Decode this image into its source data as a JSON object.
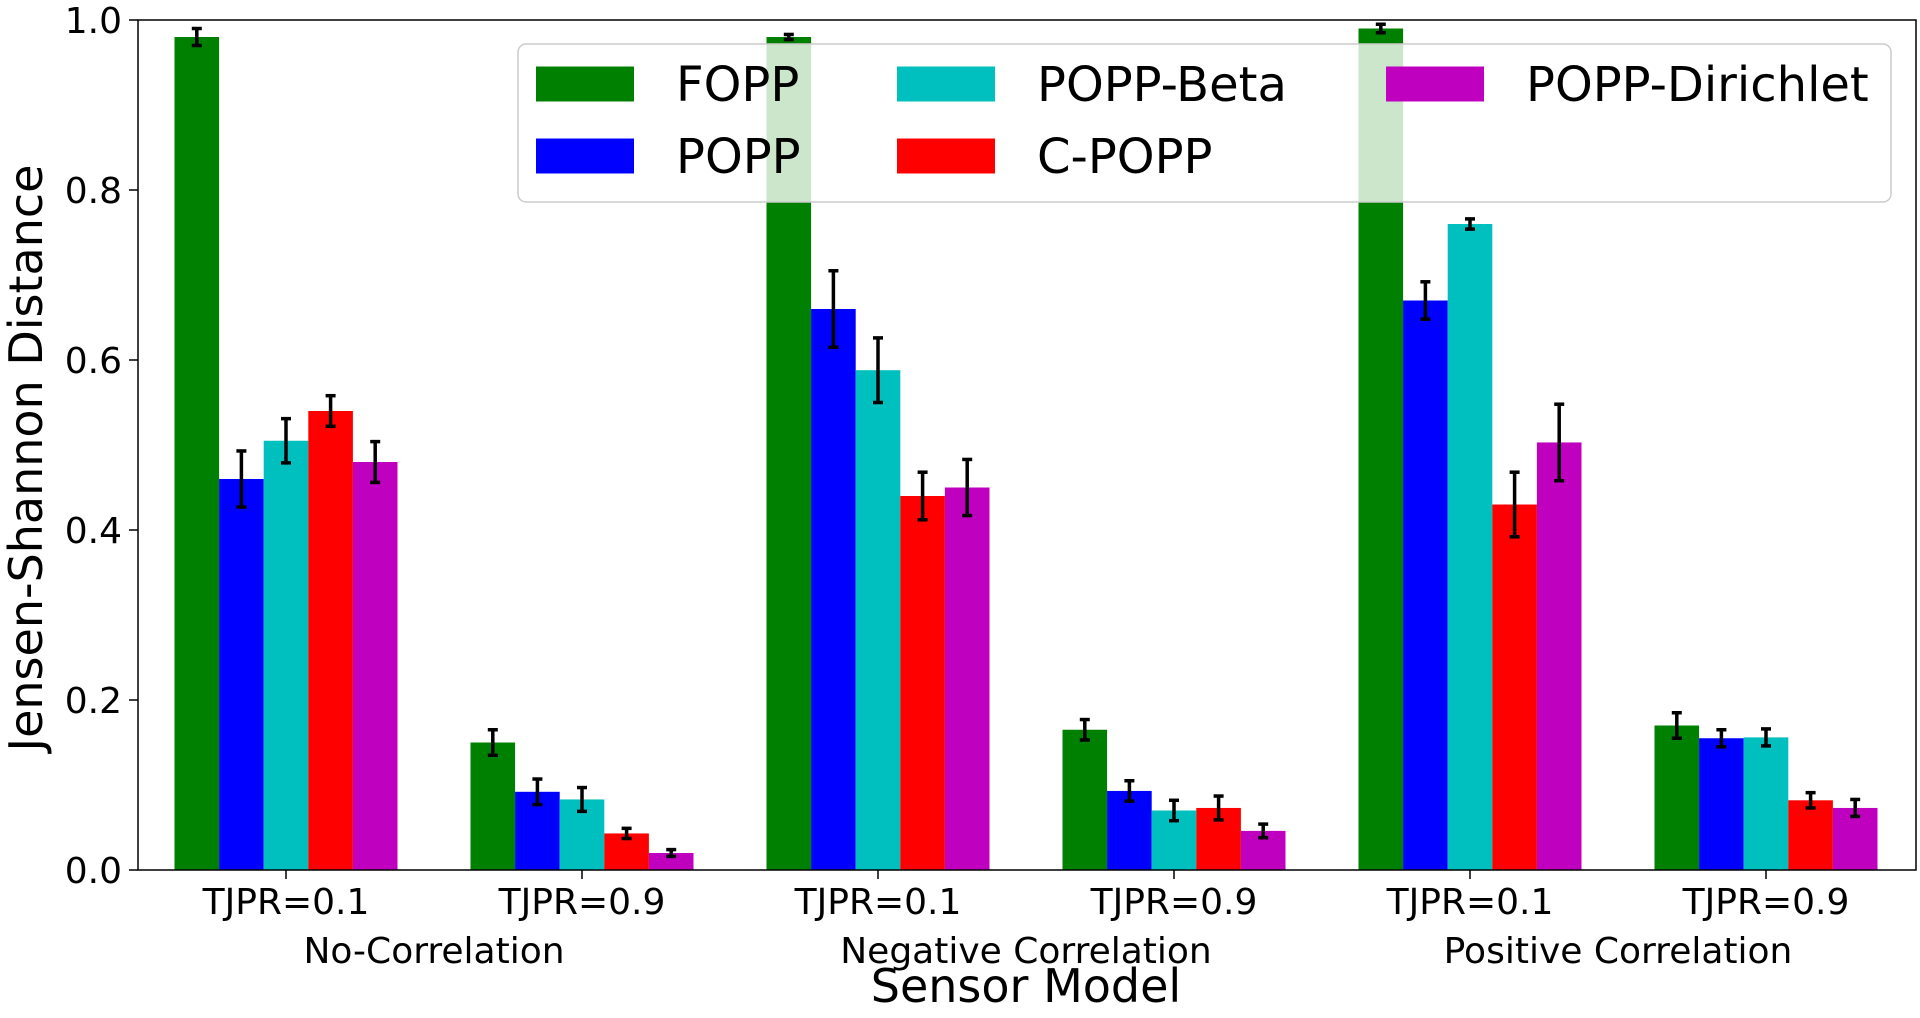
{
  "chart_data": {
    "type": "bar",
    "xlabel": "Sensor Model",
    "ylabel": "Jensen-Shannon Distance",
    "ylim": [
      0.0,
      1.0
    ],
    "yticks": [
      "0.0",
      "0.2",
      "0.4",
      "0.6",
      "0.8",
      "1.0"
    ],
    "ytick_values": [
      0.0,
      0.2,
      0.4,
      0.6,
      0.8,
      1.0
    ],
    "grid": false,
    "legend_position": "top-right",
    "categories": [
      "TJPR=0.1",
      "TJPR=0.9",
      "TJPR=0.1",
      "TJPR=0.9",
      "TJPR=0.1",
      "TJPR=0.9"
    ],
    "groups": [
      "No-Correlation",
      "Negative Correlation",
      "Positive Correlation"
    ],
    "series": [
      {
        "name": "FOPP",
        "color": "#008000",
        "values": [
          0.98,
          0.15,
          0.98,
          0.165,
          0.99,
          0.17
        ],
        "errors": [
          0.01,
          0.015,
          0.003,
          0.012,
          0.005,
          0.015
        ]
      },
      {
        "name": "POPP",
        "color": "#0000ff",
        "values": [
          0.46,
          0.092,
          0.66,
          0.093,
          0.67,
          0.155
        ],
        "errors": [
          0.033,
          0.015,
          0.045,
          0.012,
          0.022,
          0.01
        ]
      },
      {
        "name": "POPP-Beta",
        "color": "#00bfbf",
        "values": [
          0.505,
          0.083,
          0.588,
          0.07,
          0.76,
          0.156
        ],
        "errors": [
          0.026,
          0.014,
          0.038,
          0.012,
          0.006,
          0.01
        ]
      },
      {
        "name": "C-POPP",
        "color": "#ff0000",
        "values": [
          0.54,
          0.043,
          0.44,
          0.073,
          0.43,
          0.082
        ],
        "errors": [
          0.018,
          0.006,
          0.028,
          0.014,
          0.038,
          0.009
        ]
      },
      {
        "name": "POPP-Dirichlet",
        "color": "#bf00bf",
        "values": [
          0.48,
          0.02,
          0.45,
          0.046,
          0.503,
          0.073
        ],
        "errors": [
          0.024,
          0.004,
          0.033,
          0.008,
          0.045,
          0.01
        ]
      }
    ]
  }
}
